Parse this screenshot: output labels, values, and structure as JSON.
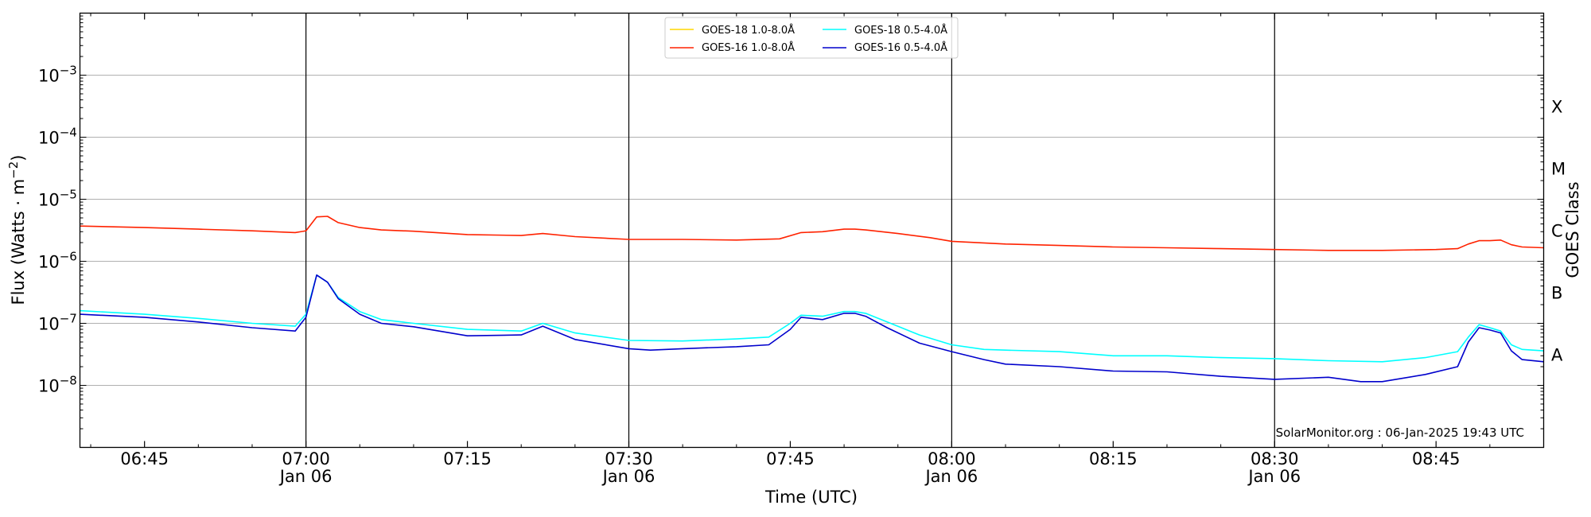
{
  "chart_data": {
    "type": "line",
    "xlabel": "Time (UTC)",
    "ylabel": "Flux (Watts · m⁻²)",
    "right_label": "GOES Class",
    "credit": "SolarMonitor.org : 06-Jan-2025 19:43 UTC",
    "y_scale": "log",
    "grid": "horizontal",
    "legend_placement": "top-center",
    "xlim": [
      "06:39",
      "08:55"
    ],
    "ylim": [
      1e-09,
      0.01
    ],
    "x_ticks": [
      {
        "t": "06:45",
        "date": ""
      },
      {
        "t": "07:00",
        "date": "Jan 06"
      },
      {
        "t": "07:15",
        "date": ""
      },
      {
        "t": "07:30",
        "date": "Jan 06"
      },
      {
        "t": "07:45",
        "date": ""
      },
      {
        "t": "08:00",
        "date": "Jan 06"
      },
      {
        "t": "08:15",
        "date": ""
      },
      {
        "t": "08:30",
        "date": "Jan 06"
      },
      {
        "t": "08:45",
        "date": ""
      }
    ],
    "vlines": [
      "07:00",
      "07:30",
      "08:00",
      "08:30"
    ],
    "y_ticks": [
      {
        "exp": "-8",
        "value": 1e-08
      },
      {
        "exp": "-7",
        "value": 1e-07
      },
      {
        "exp": "-6",
        "value": 1e-06
      },
      {
        "exp": "-5",
        "value": 1e-05
      },
      {
        "exp": "-4",
        "value": 0.0001
      },
      {
        "exp": "-3",
        "value": 0.001
      }
    ],
    "goes_classes": [
      {
        "label": "A",
        "value": 1e-08
      },
      {
        "label": "B",
        "value": 1e-07
      },
      {
        "label": "C",
        "value": 1e-06
      },
      {
        "label": "M",
        "value": 1e-05
      },
      {
        "label": "X",
        "value": 0.0001
      }
    ],
    "series": [
      {
        "name": "GOES-18 1.0-8.0Å",
        "color": "#ffd700",
        "x": [],
        "values": []
      },
      {
        "name": "GOES-16 1.0-8.0Å",
        "color": "#ff2200",
        "x": [
          "06:39",
          "06:45",
          "06:50",
          "06:55",
          "06:59",
          "07:00",
          "07:01",
          "07:02",
          "07:03",
          "07:05",
          "07:07",
          "07:10",
          "07:15",
          "07:20",
          "07:22",
          "07:25",
          "07:30",
          "07:35",
          "07:40",
          "07:44",
          "07:46",
          "07:48",
          "07:50",
          "07:51",
          "07:52",
          "07:55",
          "07:58",
          "08:00",
          "08:05",
          "08:10",
          "08:15",
          "08:20",
          "08:25",
          "08:30",
          "08:35",
          "08:40",
          "08:45",
          "08:47",
          "08:48",
          "08:49",
          "08:50",
          "08:51",
          "08:52",
          "08:53",
          "08:55"
        ],
        "values": [
          3.7e-06,
          3.5e-06,
          3.3e-06,
          3.1e-06,
          2.9e-06,
          3.1e-06,
          5.2e-06,
          5.3e-06,
          4.2e-06,
          3.5e-06,
          3.2e-06,
          3.05e-06,
          2.7e-06,
          2.6e-06,
          2.8e-06,
          2.5e-06,
          2.25e-06,
          2.25e-06,
          2.2e-06,
          2.3e-06,
          2.9e-06,
          3e-06,
          3.3e-06,
          3.3e-06,
          3.2e-06,
          2.8e-06,
          2.4e-06,
          2.1e-06,
          1.9e-06,
          1.8e-06,
          1.7e-06,
          1.65e-06,
          1.6e-06,
          1.55e-06,
          1.5e-06,
          1.5e-06,
          1.55e-06,
          1.6e-06,
          1.9e-06,
          2.15e-06,
          2.15e-06,
          2.2e-06,
          1.85e-06,
          1.7e-06,
          1.65e-06
        ]
      },
      {
        "name": "GOES-18 0.5-4.0Å",
        "color": "#00ffff",
        "x": [
          "06:39",
          "06:45",
          "06:50",
          "06:55",
          "06:59",
          "07:00",
          "07:01",
          "07:02",
          "07:03",
          "07:05",
          "07:07",
          "07:10",
          "07:15",
          "07:20",
          "07:22",
          "07:25",
          "07:30",
          "07:35",
          "07:40",
          "07:43",
          "07:45",
          "07:46",
          "07:48",
          "07:50",
          "07:51",
          "07:52",
          "07:54",
          "07:57",
          "08:00",
          "08:03",
          "08:05",
          "08:10",
          "08:15",
          "08:20",
          "08:25",
          "08:30",
          "08:35",
          "08:40",
          "08:44",
          "08:47",
          "08:48",
          "08:49",
          "08:50",
          "08:51",
          "08:52",
          "08:53",
          "08:55"
        ],
        "values": [
          1.6e-07,
          1.4e-07,
          1.2e-07,
          1e-07,
          9e-08,
          1.4e-07,
          6e-07,
          4.6e-07,
          2.6e-07,
          1.55e-07,
          1.15e-07,
          1e-07,
          8e-08,
          7.5e-08,
          1e-07,
          7e-08,
          5.3e-08,
          5.2e-08,
          5.6e-08,
          6e-08,
          1e-07,
          1.35e-07,
          1.3e-07,
          1.55e-07,
          1.55e-07,
          1.45e-07,
          1.05e-07,
          6.5e-08,
          4.5e-08,
          3.8e-08,
          3.7e-08,
          3.5e-08,
          3e-08,
          3e-08,
          2.8e-08,
          2.7e-08,
          2.5e-08,
          2.4e-08,
          2.8e-08,
          3.5e-08,
          6e-08,
          9.5e-08,
          8.5e-08,
          7.5e-08,
          4.5e-08,
          3.8e-08,
          3.6e-08
        ]
      },
      {
        "name": "GOES-16 0.5-4.0Å",
        "color": "#0000cc",
        "x": [
          "06:39",
          "06:45",
          "06:50",
          "06:55",
          "06:59",
          "07:00",
          "07:01",
          "07:02",
          "07:03",
          "07:05",
          "07:07",
          "07:10",
          "07:15",
          "07:20",
          "07:22",
          "07:25",
          "07:30",
          "07:32",
          "07:35",
          "07:40",
          "07:43",
          "07:45",
          "07:46",
          "07:48",
          "07:50",
          "07:51",
          "07:52",
          "07:54",
          "07:57",
          "08:00",
          "08:03",
          "08:05",
          "08:10",
          "08:15",
          "08:20",
          "08:25",
          "08:30",
          "08:35",
          "08:38",
          "08:40",
          "08:44",
          "08:47",
          "08:48",
          "08:49",
          "08:50",
          "08:51",
          "08:52",
          "08:53",
          "08:55"
        ],
        "values": [
          1.4e-07,
          1.25e-07,
          1.05e-07,
          8.5e-08,
          7.5e-08,
          1.25e-07,
          6e-07,
          4.6e-07,
          2.5e-07,
          1.4e-07,
          1e-07,
          8.8e-08,
          6.3e-08,
          6.5e-08,
          9e-08,
          5.5e-08,
          3.9e-08,
          3.7e-08,
          3.9e-08,
          4.2e-08,
          4.5e-08,
          8e-08,
          1.25e-07,
          1.15e-07,
          1.45e-07,
          1.45e-07,
          1.3e-07,
          8.5e-08,
          4.8e-08,
          3.5e-08,
          2.6e-08,
          2.2e-08,
          2e-08,
          1.7e-08,
          1.65e-08,
          1.4e-08,
          1.25e-08,
          1.35e-08,
          1.15e-08,
          1.15e-08,
          1.5e-08,
          2e-08,
          5e-08,
          8.5e-08,
          7.8e-08,
          7e-08,
          3.6e-08,
          2.6e-08,
          2.4e-08
        ]
      }
    ]
  }
}
